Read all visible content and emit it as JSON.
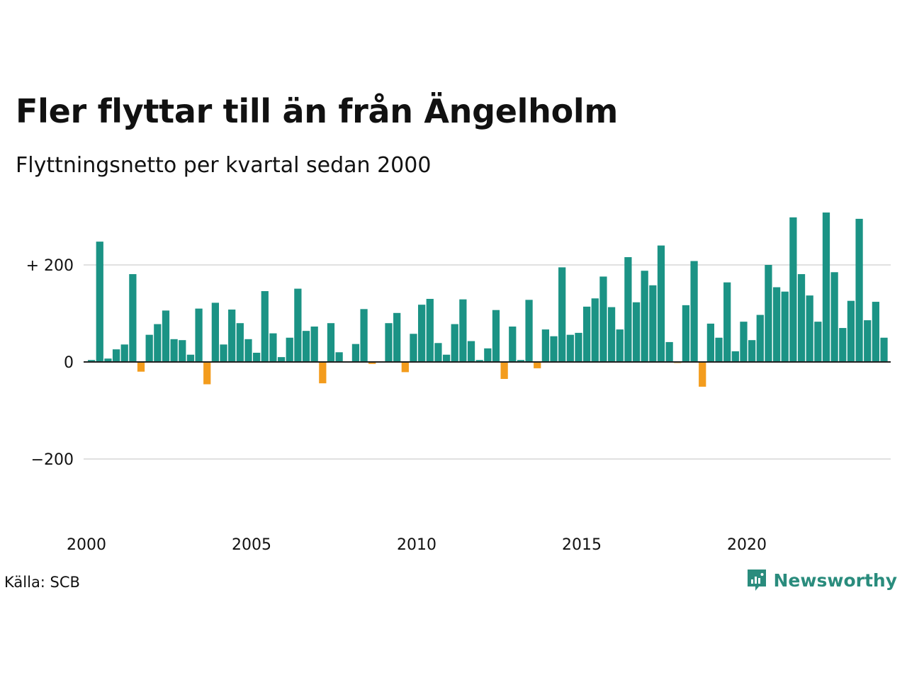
{
  "header": {
    "title": "Fler flyttar till än från Ängelholm",
    "subtitle": "Flyttningsnetto per kvartal sedan 2000"
  },
  "footer": {
    "source": "Källa: SCB",
    "brand": "Newsworthy"
  },
  "colors": {
    "positive": "#1b9385",
    "negative": "#f39c1d",
    "grid": "#e1e1e1",
    "axis": "#222222",
    "brand": "#2a8c7d"
  },
  "icons": {
    "brand": "newsworthy-logo-icon"
  },
  "chart_data": {
    "type": "bar",
    "title": "Fler flyttar till än från Ängelholm",
    "subtitle": "Flyttningsnetto per kvartal sedan 2000",
    "x_start_year": 2000,
    "quarters_per_year": 4,
    "ylim": [
      -330,
      330
    ],
    "yticks": [
      {
        "value": 200,
        "label": "+ 200"
      },
      {
        "value": 0,
        "label": "0"
      },
      {
        "value": -200,
        "label": "−200"
      }
    ],
    "xticks": [
      {
        "year": 2000,
        "label": "2000"
      },
      {
        "year": 2005,
        "label": "2005"
      },
      {
        "year": 2010,
        "label": "2010"
      },
      {
        "year": 2015,
        "label": "2015"
      },
      {
        "year": 2020,
        "label": "2020"
      }
    ],
    "grid": true,
    "legend": "none",
    "values": [
      4,
      248,
      7,
      26,
      36,
      181,
      -20,
      56,
      78,
      106,
      47,
      45,
      15,
      110,
      -46,
      122,
      36,
      108,
      80,
      47,
      19,
      146,
      59,
      10,
      50,
      151,
      64,
      73,
      -44,
      80,
      20,
      0,
      37,
      109,
      -4,
      0,
      80,
      101,
      -21,
      58,
      118,
      130,
      39,
      15,
      78,
      129,
      43,
      4,
      28,
      107,
      -35,
      73,
      4,
      128,
      -13,
      67,
      53,
      195,
      56,
      60,
      114,
      131,
      176,
      113,
      67,
      216,
      123,
      188,
      158,
      240,
      41,
      -2,
      117,
      208,
      -51,
      79,
      50,
      164,
      22,
      83,
      45,
      97,
      200,
      154,
      145,
      298,
      181,
      137,
      83,
      308,
      185,
      70,
      126,
      295,
      86,
      124,
      50
    ]
  }
}
